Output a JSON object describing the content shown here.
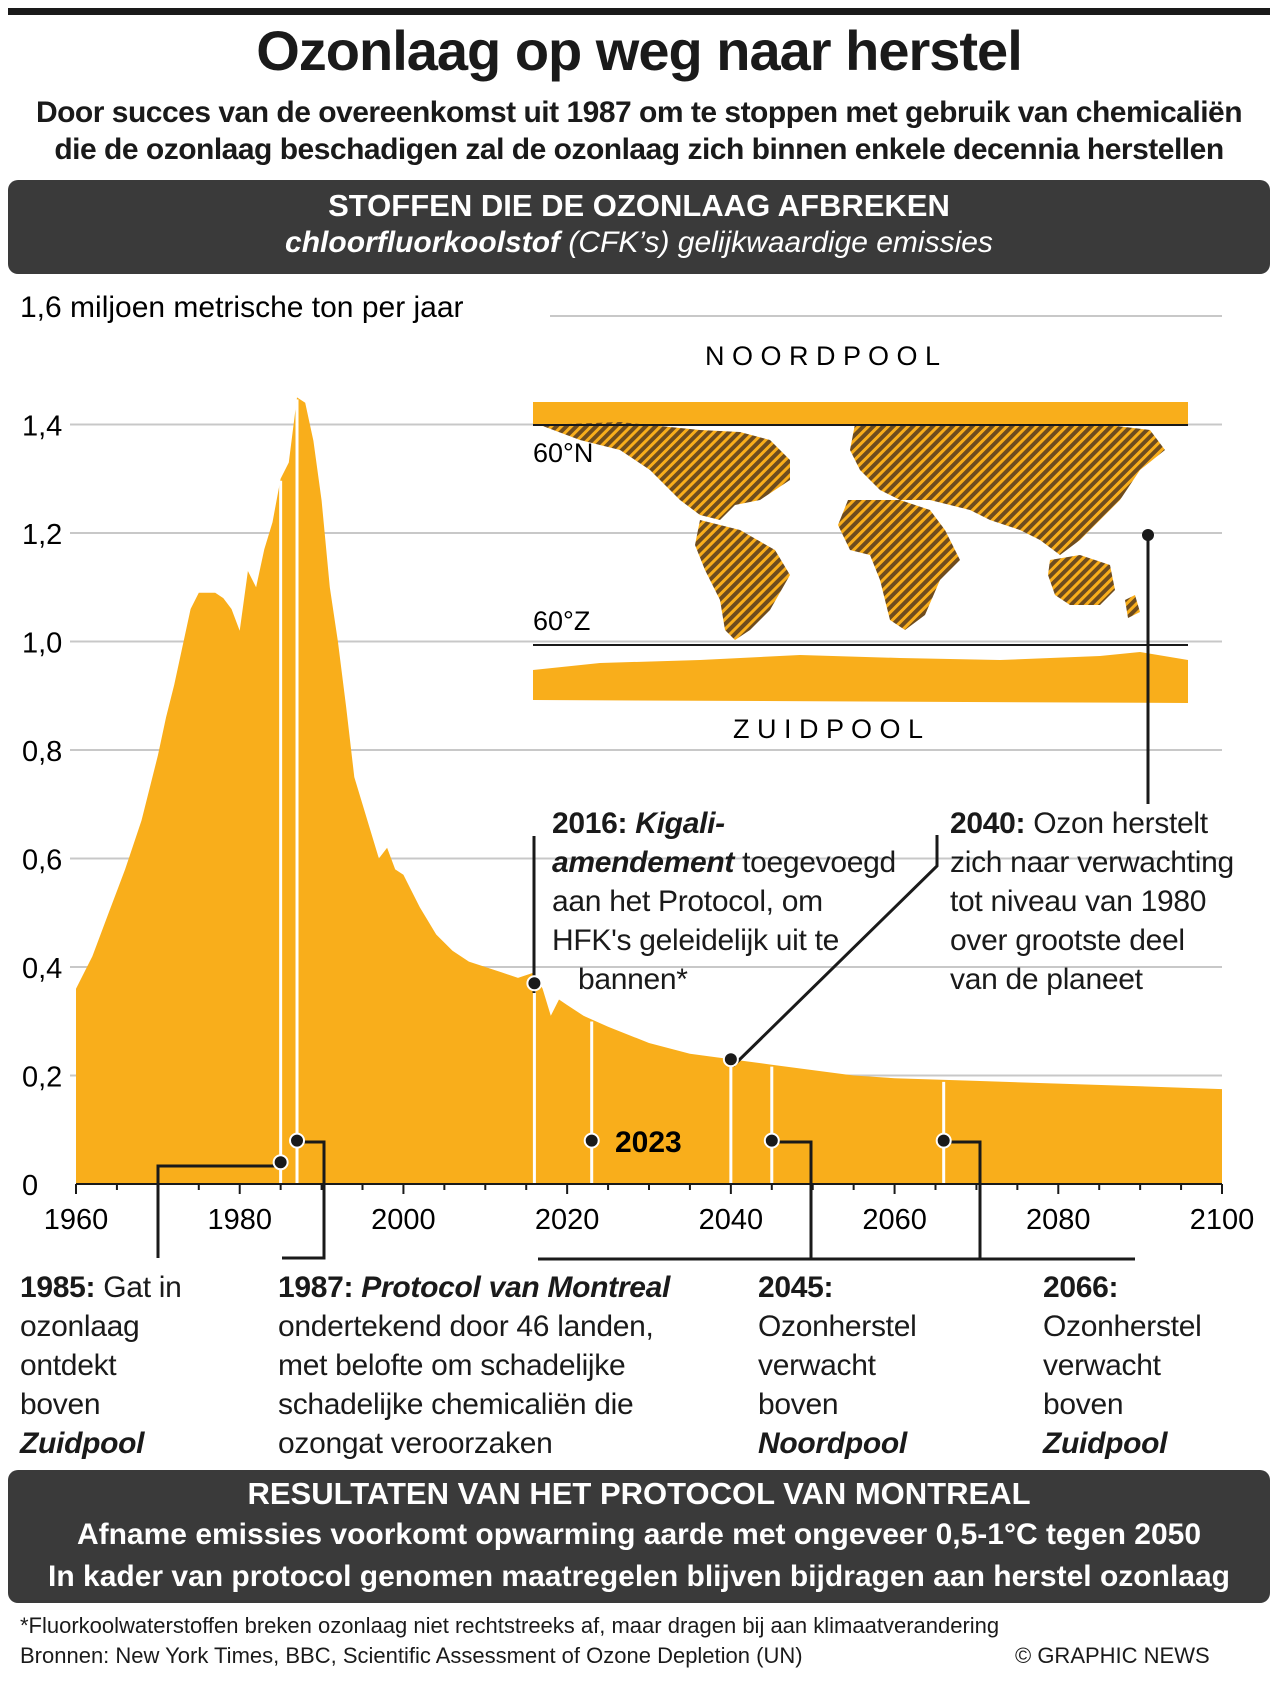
{
  "title": "Ozonlaag op weg naar herstel",
  "subtitle_line1": "Door succes van de overeenkomst uit 1987 om te stoppen met gebruik van chemicaliën",
  "subtitle_line2": "die de ozonlaag beschadigen zal de ozonlaag zich binnen enkele decennia herstellen",
  "section_title": "STOFFEN DIE DE OZONLAAG AFBREKEN",
  "section_sub_italic_bold": "chloorfluorkoolstof",
  "section_sub_rest": " (CFK’s) gelijkwaardige emissies",
  "map": {
    "north_label": "N O O R D P O O L",
    "south_label": "Z U I D P O O L",
    "lat_north": "60°N",
    "lat_south": "60°Z"
  },
  "annotations": {
    "a1985": {
      "year": "1985:",
      "l1": " Gat in",
      "l2": "ozonlaag",
      "l3": "ontdekt",
      "l4": "boven",
      "em": "Zuidpool"
    },
    "a1987": {
      "year": "1987:",
      "em": "Protocol van Montreal",
      "l2": "ondertekend door 46 landen,",
      "l3": "met belofte om schadelijke",
      "l4": "schadelijke chemicaliën die",
      "l5": "ozongat veroorzaken"
    },
    "a2016": {
      "year": "2016:",
      "em1": "Kigali-",
      "em2": "amendement",
      "l2": " toegevoegd",
      "l3": "aan het Protocol, om",
      "l4": "HFK's geleidelijk uit te",
      "l5": "bannen*"
    },
    "a2040": {
      "year": "2040:",
      "l1": " Ozon herstelt",
      "l2": "zich naar verwachting",
      "l3": "tot niveau van 1980",
      "l4": "over grootste deel",
      "l5": "van de planeet"
    },
    "a2045": {
      "year": "2045:",
      "l2": "Ozonherstel",
      "l3": "verwacht",
      "l4": "boven",
      "em": "Noordpool"
    },
    "a2066": {
      "year": "2066:",
      "l2": "Ozonherstel",
      "l3": "verwacht",
      "l4": "boven",
      "em": "Zuidpool"
    },
    "label2023": "2023"
  },
  "results": {
    "title": "RESULTATEN VAN HET PROTOCOL VAN MONTREAL",
    "line1": "Afname emissies voorkomt opwarming aarde met ongeveer 0,5-1°C tegen 2050",
    "line2": "In kader van protocol genomen maatregelen blijven bijdragen aan herstel ozonlaag"
  },
  "footnote": "*Fluorkoolwaterstoffen breken ozonlaag niet rechtstreeks af, maar dragen bij aan klimaatverandering",
  "sources": "Bronnen: New York Times, BBC, Scientific Assessment of Ozone Depletion (UN)",
  "credit": "© GRAPHIC NEWS",
  "colors": {
    "fill": "#f9ae1b",
    "dark": "#3a3a3a",
    "land": "#7a5a2a"
  },
  "chart_data": {
    "type": "area",
    "title": "STOFFEN DIE DE OZONLAAG AFBREKEN",
    "ylabel": "1,6 miljoen metrische ton per jaar",
    "xlabel": "",
    "xlim": [
      1960,
      2100
    ],
    "ylim": [
      0,
      1.6
    ],
    "x_ticks": [
      "1960",
      "1980",
      "2000",
      "2020",
      "2040",
      "2060",
      "2080",
      "2100"
    ],
    "y_ticks": [
      "0",
      "0,2",
      "0,4",
      "0,6",
      "0,8",
      "1,0",
      "1,2",
      "1,4"
    ],
    "y_tick_values": [
      0,
      0.2,
      0.4,
      0.6,
      0.8,
      1.0,
      1.2,
      1.4,
      1.6
    ],
    "x": [
      1960,
      1962,
      1964,
      1966,
      1968,
      1970,
      1971,
      1972,
      1973,
      1974,
      1975,
      1976,
      1977,
      1978,
      1979,
      1980,
      1981,
      1982,
      1983,
      1984,
      1985,
      1986,
      1987,
      1988,
      1989,
      1990,
      1991,
      1992,
      1993,
      1994,
      1995,
      1996,
      1997,
      1998,
      1999,
      2000,
      2002,
      2004,
      2006,
      2008,
      2010,
      2012,
      2014,
      2016,
      2017,
      2018,
      2019,
      2020,
      2022,
      2025,
      2030,
      2035,
      2040,
      2045,
      2050,
      2055,
      2060,
      2070,
      2080,
      2090,
      2100
    ],
    "values": [
      0.36,
      0.42,
      0.5,
      0.58,
      0.67,
      0.79,
      0.86,
      0.92,
      0.99,
      1.06,
      1.09,
      1.09,
      1.09,
      1.08,
      1.06,
      1.02,
      1.13,
      1.1,
      1.17,
      1.22,
      1.3,
      1.33,
      1.45,
      1.44,
      1.37,
      1.26,
      1.1,
      1.0,
      0.88,
      0.75,
      0.7,
      0.65,
      0.6,
      0.62,
      0.58,
      0.57,
      0.51,
      0.46,
      0.43,
      0.41,
      0.4,
      0.39,
      0.38,
      0.39,
      0.36,
      0.31,
      0.34,
      0.33,
      0.31,
      0.29,
      0.26,
      0.24,
      0.23,
      0.22,
      0.21,
      0.2,
      0.195,
      0.19,
      0.185,
      0.18,
      0.175
    ],
    "events": [
      {
        "year": 1985,
        "value": 0.04
      },
      {
        "year": 1987,
        "value": 0.08
      },
      {
        "year": 2016,
        "value": 0.37
      },
      {
        "year": 2023,
        "value": 0.08
      },
      {
        "year": 2040,
        "value": 0.23
      },
      {
        "year": 2045,
        "value": 0.08
      },
      {
        "year": 2066,
        "value": 0.08
      }
    ]
  }
}
